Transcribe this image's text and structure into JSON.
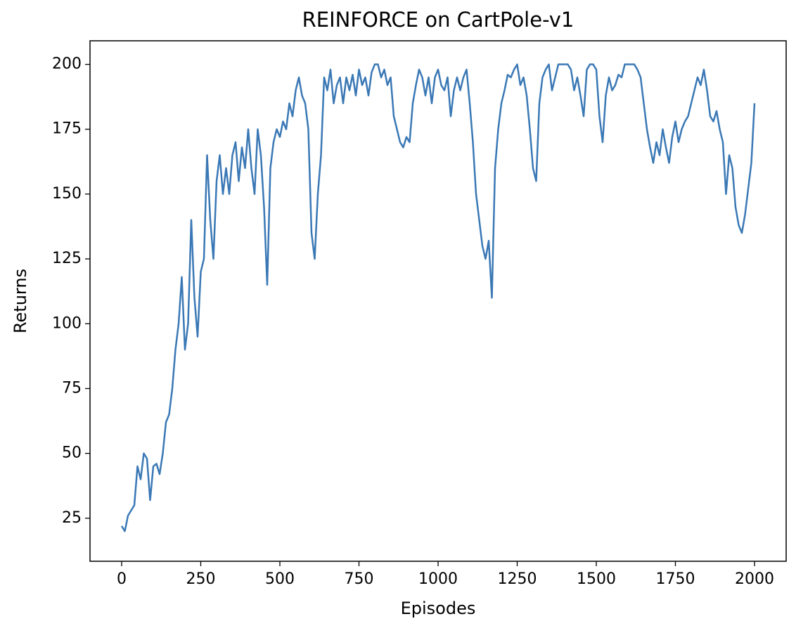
{
  "chart_data": {
    "type": "line",
    "title": "REINFORCE on CartPole-v1",
    "x_label": "Episodes",
    "y_label": "Returns",
    "x": [
      0,
      10,
      20,
      30,
      40,
      50,
      60,
      70,
      80,
      90,
      100,
      110,
      120,
      130,
      140,
      150,
      160,
      170,
      180,
      190,
      200,
      210,
      220,
      230,
      240,
      250,
      260,
      270,
      280,
      290,
      300,
      310,
      320,
      330,
      340,
      350,
      360,
      370,
      380,
      390,
      400,
      410,
      420,
      430,
      440,
      450,
      460,
      470,
      480,
      490,
      500,
      510,
      520,
      530,
      540,
      550,
      560,
      570,
      580,
      590,
      600,
      610,
      620,
      630,
      640,
      650,
      660,
      670,
      680,
      690,
      700,
      710,
      720,
      730,
      740,
      750,
      760,
      770,
      780,
      790,
      800,
      810,
      820,
      830,
      840,
      850,
      860,
      870,
      880,
      890,
      900,
      910,
      920,
      930,
      940,
      950,
      960,
      970,
      980,
      990,
      1000,
      1010,
      1020,
      1030,
      1040,
      1050,
      1060,
      1070,
      1080,
      1090,
      1100,
      1110,
      1120,
      1130,
      1140,
      1150,
      1160,
      1170,
      1180,
      1190,
      1200,
      1210,
      1220,
      1230,
      1240,
      1250,
      1260,
      1270,
      1280,
      1290,
      1300,
      1310,
      1320,
      1330,
      1340,
      1350,
      1360,
      1370,
      1380,
      1390,
      1400,
      1410,
      1420,
      1430,
      1440,
      1450,
      1460,
      1470,
      1480,
      1490,
      1500,
      1510,
      1520,
      1530,
      1540,
      1550,
      1560,
      1570,
      1580,
      1590,
      1600,
      1610,
      1620,
      1630,
      1640,
      1650,
      1660,
      1670,
      1680,
      1690,
      1700,
      1710,
      1720,
      1730,
      1740,
      1750,
      1760,
      1770,
      1780,
      1790,
      1800,
      1810,
      1820,
      1830,
      1840,
      1850,
      1860,
      1870,
      1880,
      1890,
      1900,
      1910,
      1920,
      1930,
      1940,
      1950,
      1960,
      1970,
      1980,
      1990,
      2000
    ],
    "series": [
      {
        "name": "Returns",
        "color": "#3a78b5",
        "values": [
          22,
          20,
          26,
          28,
          30,
          45,
          40,
          50,
          48,
          32,
          45,
          46,
          42,
          50,
          62,
          65,
          75,
          90,
          100,
          118,
          90,
          100,
          140,
          110,
          95,
          120,
          125,
          165,
          140,
          125,
          155,
          165,
          150,
          160,
          150,
          165,
          170,
          155,
          168,
          160,
          175,
          160,
          150,
          175,
          165,
          145,
          115,
          160,
          170,
          175,
          172,
          178,
          175,
          185,
          180,
          190,
          195,
          188,
          185,
          175,
          135,
          125,
          150,
          165,
          195,
          190,
          198,
          185,
          192,
          195,
          185,
          195,
          190,
          196,
          188,
          198,
          192,
          195,
          188,
          197,
          200,
          200,
          195,
          198,
          192,
          195,
          180,
          175,
          170,
          168,
          172,
          170,
          185,
          192,
          198,
          195,
          188,
          195,
          185,
          195,
          198,
          192,
          190,
          195,
          180,
          190,
          195,
          190,
          195,
          198,
          185,
          170,
          150,
          140,
          130,
          125,
          132,
          110,
          160,
          175,
          185,
          190,
          196,
          195,
          198,
          200,
          192,
          195,
          188,
          175,
          160,
          155,
          185,
          195,
          198,
          200,
          190,
          195,
          200,
          200,
          200,
          200,
          198,
          190,
          195,
          188,
          180,
          198,
          200,
          200,
          198,
          180,
          170,
          188,
          195,
          190,
          192,
          196,
          195,
          200,
          200,
          200,
          200,
          198,
          195,
          185,
          175,
          168,
          162,
          170,
          165,
          175,
          168,
          162,
          172,
          178,
          170,
          175,
          178,
          180,
          185,
          190,
          195,
          192,
          198,
          190,
          180,
          178,
          182,
          175,
          170,
          150,
          165,
          160,
          145,
          138,
          135,
          142,
          152,
          162,
          185
        ]
      }
    ],
    "xlim": [
      -100,
      2100
    ],
    "ylim": [
      8.4,
      209.1
    ],
    "xticks": [
      0,
      250,
      500,
      750,
      1000,
      1250,
      1500,
      1750,
      2000
    ],
    "yticks": [
      25,
      50,
      75,
      100,
      125,
      150,
      175,
      200
    ]
  }
}
